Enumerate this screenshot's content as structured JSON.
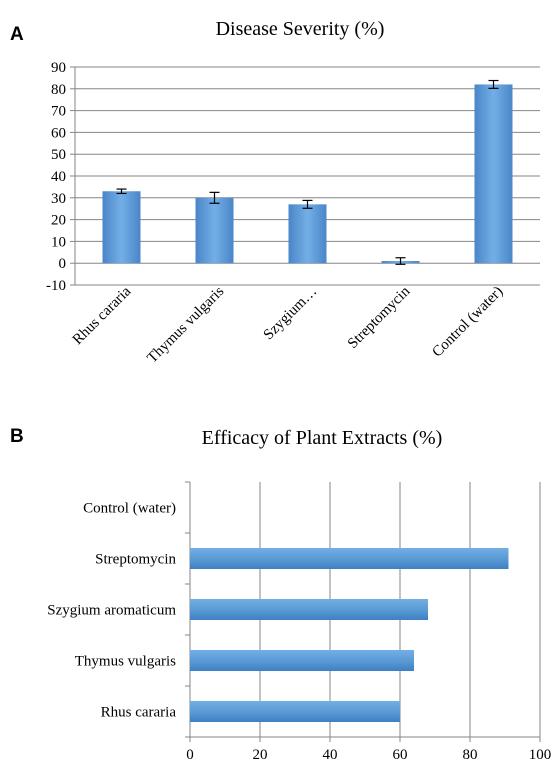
{
  "chart_data": [
    {
      "panel": "A",
      "type": "bar",
      "orientation": "vertical",
      "title": "Disease Severity (%)",
      "categories": [
        "Rhus cararia",
        "Thymus vulgaris",
        "Szygium…",
        "Streptomycin",
        "Control (water)"
      ],
      "values": [
        33,
        30,
        27,
        1,
        82
      ],
      "errors": [
        1,
        2.5,
        1.8,
        1.5,
        1.8
      ],
      "yticks": [
        -10,
        0,
        10,
        20,
        30,
        40,
        50,
        60,
        70,
        80,
        90
      ],
      "ylim": [
        -10,
        90
      ],
      "grid": "horizontal",
      "bar_color": "#5b9bd5",
      "legend": "none"
    },
    {
      "panel": "B",
      "type": "bar",
      "orientation": "horizontal",
      "title": "Efficacy of Plant Extracts (%)",
      "categories": [
        "Control (water)",
        "Streptomycin",
        "Szygium aromaticum",
        "Thymus vulgaris",
        "Rhus cararia"
      ],
      "values": [
        0,
        91,
        68,
        64,
        60
      ],
      "xticks": [
        0,
        20,
        40,
        60,
        80,
        100
      ],
      "xlim": [
        0,
        100
      ],
      "grid": "vertical",
      "bar_color": "#5b9bd5",
      "legend": "none"
    }
  ]
}
